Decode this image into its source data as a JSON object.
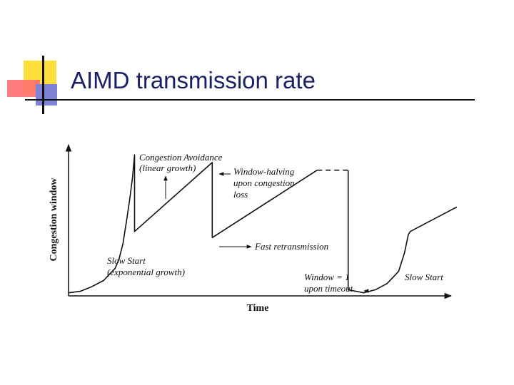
{
  "slide": {
    "title": "AIMD transmission rate"
  },
  "chart_data": {
    "type": "line",
    "xlabel": "Time",
    "ylabel": "Congestion window",
    "xlim": [
      0,
      100
    ],
    "ylim": [
      0,
      100
    ],
    "grid": false,
    "legend": "none",
    "series": [
      {
        "style": "solid",
        "points": [
          [
            0,
            2
          ],
          [
            3,
            3
          ],
          [
            6,
            6
          ],
          [
            9,
            10
          ],
          [
            12,
            18
          ],
          [
            13,
            24
          ],
          [
            14,
            34
          ],
          [
            15,
            50
          ],
          [
            15.8,
            64
          ],
          [
            16.5,
            78
          ],
          [
            17,
            92
          ],
          [
            17,
            42
          ],
          [
            37,
            87
          ],
          [
            37,
            38
          ],
          [
            64,
            82
          ]
        ]
      },
      {
        "style": "dashed",
        "points": [
          [
            64,
            82
          ],
          [
            72,
            82
          ]
        ]
      },
      {
        "style": "solid",
        "points": [
          [
            72,
            82
          ],
          [
            72,
            4
          ],
          [
            76,
            2
          ],
          [
            79,
            4
          ],
          [
            82,
            8
          ],
          [
            85,
            16
          ],
          [
            86.5,
            28
          ],
          [
            87.5,
            40
          ],
          [
            88,
            42
          ],
          [
            100,
            58
          ]
        ]
      }
    ],
    "annotations": [
      {
        "id": "congestion-avoidance",
        "lines": [
          "Congestion Avoidance",
          "(linear growth)"
        ],
        "point": [
          23.5,
          71
        ]
      },
      {
        "id": "window-halving",
        "lines": [
          "Window-halving",
          "upon congestion",
          "loss"
        ],
        "point": [
          37,
          87
        ]
      },
      {
        "id": "fast-retransmission",
        "lines": [
          "Fast retransmission"
        ],
        "point": [
          37,
          33
        ]
      },
      {
        "id": "slow-start-1",
        "lines": [
          "Slow Start",
          "(exponential growth)"
        ]
      },
      {
        "id": "window-1",
        "lines": [
          "Window = 1",
          "upon timeout"
        ],
        "point": [
          72,
          4
        ]
      },
      {
        "id": "slow-start-2",
        "lines": [
          "Slow Start"
        ]
      }
    ]
  }
}
